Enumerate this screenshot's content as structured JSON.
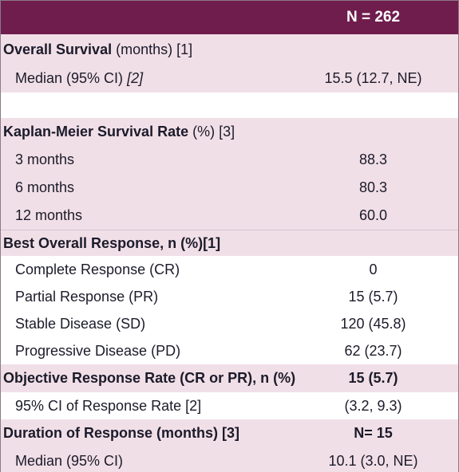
{
  "header": {
    "n_label": "N = 262"
  },
  "overall_survival": {
    "title_bold": "Overall Survival",
    "title_rest": " (months) [1]",
    "median_label": "Median (95% CI) ",
    "median_ref": "[2]",
    "median_value": "15.5 (12.7, NE)"
  },
  "km": {
    "title_bold": "Kaplan-Meier Survival Rate",
    "title_rest": " (%) [3]",
    "rows": [
      {
        "label": "3 months",
        "value": "88.3"
      },
      {
        "label": "6 months",
        "value": "80.3"
      },
      {
        "label": "12 months",
        "value": "60.0"
      }
    ]
  },
  "bor": {
    "title": "Best Overall Response, n (%)[1]",
    "rows": [
      {
        "label": "Complete Response (CR)",
        "value": "0"
      },
      {
        "label": "Partial Response (PR)",
        "value": "15 (5.7)"
      },
      {
        "label": "Stable Disease (SD)",
        "value": "120 (45.8)"
      },
      {
        "label": "Progressive Disease (PD)",
        "value": "62 (23.7)"
      }
    ]
  },
  "orr": {
    "title": "Objective Response Rate (CR or PR), n (%)",
    "value": "15 (5.7)",
    "ci_label": "95% CI of Response Rate [2]",
    "ci_value": "(3.2, 9.3)"
  },
  "dor": {
    "title": "Duration of Response (months) [3]",
    "value": "N= 15",
    "median_label": "Median (95% CI)",
    "median_value": "10.1 (3.0, NE)"
  }
}
